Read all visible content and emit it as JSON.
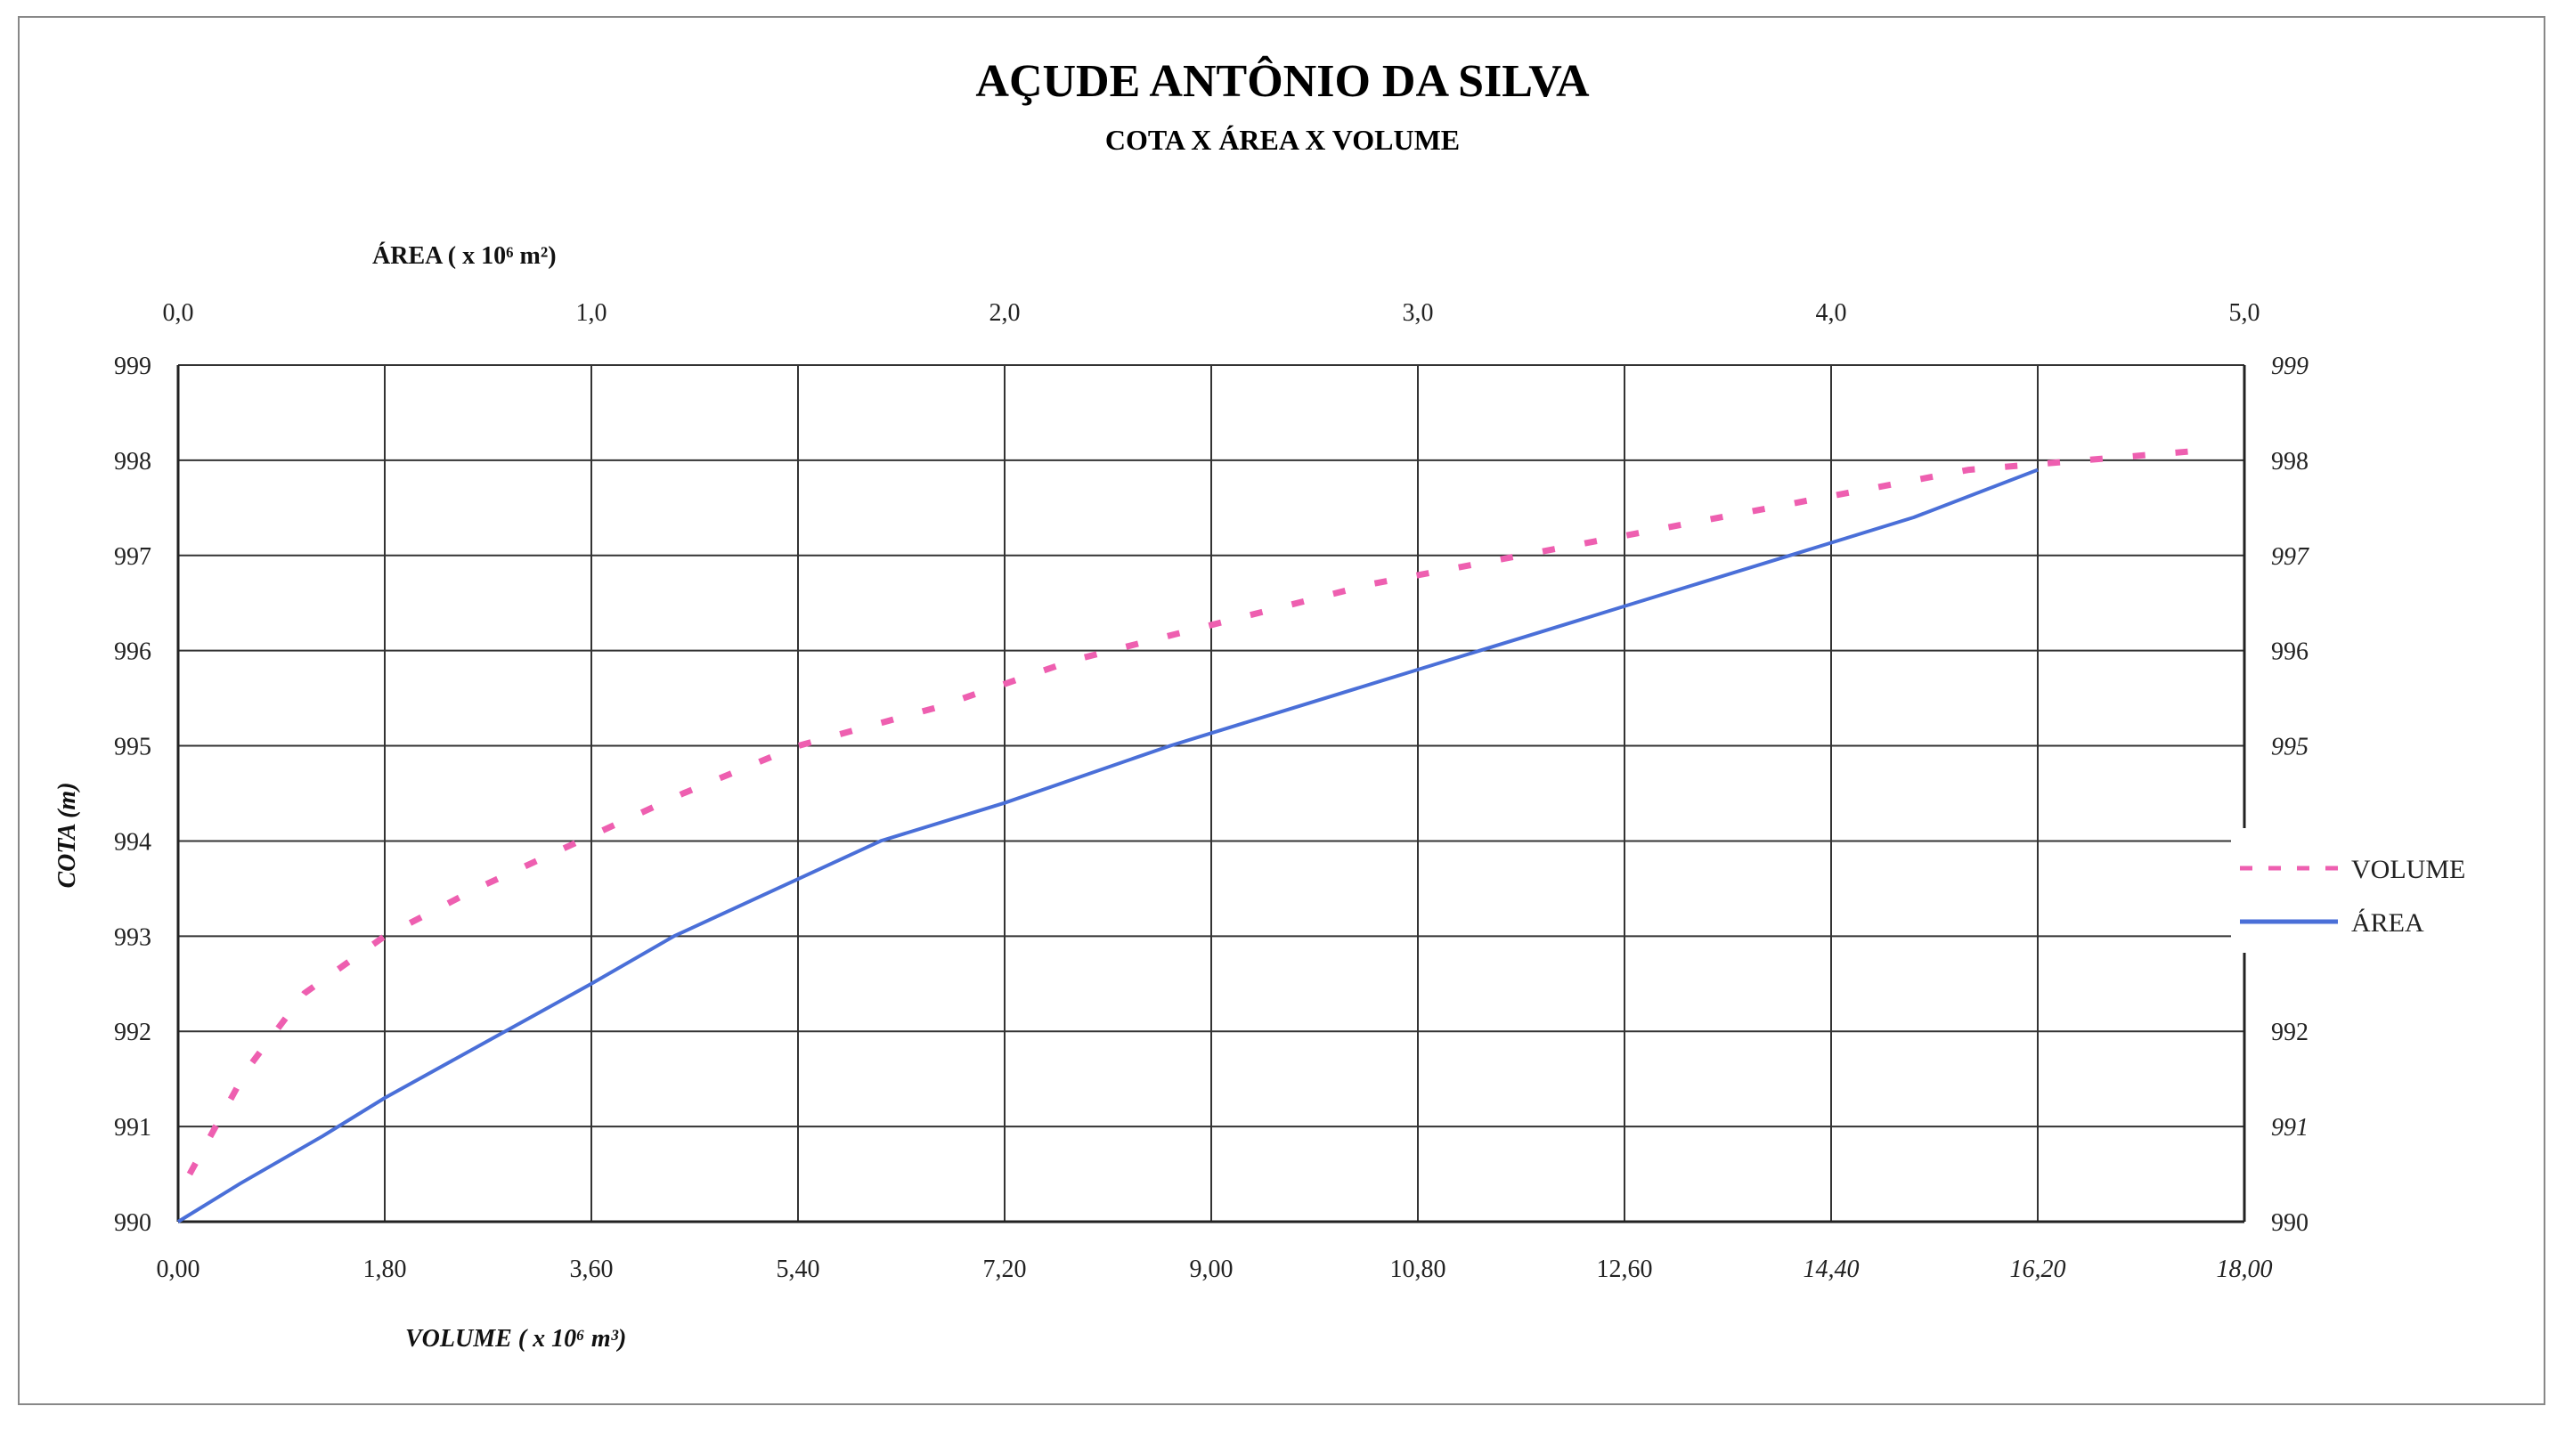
{
  "chart_data": {
    "type": "line",
    "title": "AÇUDE ANTÔNIO DA SILVA",
    "subtitle": "COTA X ÁREA X VOLUME",
    "ylabel": "COTA (m)",
    "xlabel_bottom": "VOLUME  ( x 10⁶ m³)",
    "xlabel_top": "ÁREA ( x 10⁶ m²)",
    "ylim": [
      990,
      999
    ],
    "x_bottom_lim": [
      0,
      18
    ],
    "x_top_lim": [
      0,
      5
    ],
    "y_ticks": [
      "990",
      "991",
      "992",
      "993",
      "994",
      "995",
      "996",
      "997",
      "998",
      "999"
    ],
    "x_bottom_ticks": [
      "0,00",
      "1,80",
      "3,60",
      "5,40",
      "7,20",
      "9,00",
      "10,80",
      "12,60",
      "14,40",
      "16,20",
      "18,00"
    ],
    "x_top_ticks": [
      "0,0",
      "1,0",
      "2,0",
      "3,0",
      "4,0",
      "5,0"
    ],
    "grid": true,
    "legend_position": "right",
    "series": [
      {
        "name": "VOLUME",
        "axis": "bottom",
        "color": "#ee5fb0",
        "style": "dashed",
        "x": [
          0.1,
          0.6,
          1.1,
          1.8,
          2.6,
          3.5,
          4.4,
          5.4,
          6.6,
          7.8,
          9.1,
          10.4,
          11.7,
          13.0,
          14.3,
          15.6,
          16.6,
          17.6
        ],
        "y": [
          990.5,
          991.6,
          992.4,
          993.0,
          993.5,
          994.0,
          994.5,
          995.0,
          995.4,
          995.9,
          996.3,
          996.7,
          997.0,
          997.3,
          997.6,
          997.9,
          998.0,
          998.1
        ]
      },
      {
        "name": "ÁREA",
        "axis": "top",
        "color": "#4a6fd8",
        "style": "solid",
        "x": [
          0.0,
          0.15,
          0.35,
          0.5,
          0.75,
          1.0,
          1.2,
          1.5,
          1.7,
          2.0,
          2.4,
          2.7,
          3.0,
          3.3,
          3.6,
          3.9,
          4.2,
          4.5
        ],
        "y": [
          990.0,
          990.4,
          990.9,
          991.3,
          991.9,
          992.5,
          993.0,
          993.6,
          994.0,
          994.4,
          995.0,
          995.4,
          995.8,
          996.2,
          996.6,
          997.0,
          997.4,
          997.9
        ]
      }
    ]
  }
}
